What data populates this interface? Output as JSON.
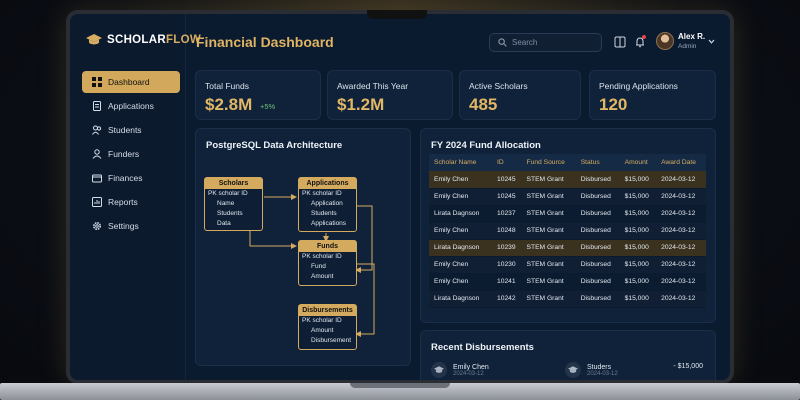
{
  "brand": {
    "part1": "SCHOLAR",
    "part2": "FLOW"
  },
  "header": {
    "title": "Financial Dashboard",
    "search_placeholder": "Search",
    "user_name": "Alex R.",
    "user_role": "Admin"
  },
  "sidebar": {
    "items": [
      {
        "label": "Dashboard",
        "icon": "grid-icon",
        "active": true
      },
      {
        "label": "Applications",
        "icon": "document-icon"
      },
      {
        "label": "Students",
        "icon": "users-icon"
      },
      {
        "label": "Funders",
        "icon": "user-icon"
      },
      {
        "label": "Finances",
        "icon": "wallet-icon"
      },
      {
        "label": "Reports",
        "icon": "report-icon"
      },
      {
        "label": "Settings",
        "icon": "gear-icon"
      }
    ]
  },
  "stats": [
    {
      "label": "Total Funds",
      "value": "$2.8M",
      "delta": "+5%"
    },
    {
      "label": "Awarded This Year",
      "value": "$1.2M"
    },
    {
      "label": "Active Scholars",
      "value": "485"
    },
    {
      "label": "Pending Applications",
      "value": "120"
    }
  ],
  "architecture": {
    "title": "PostgreSQL Data Architecture",
    "entities": {
      "scholars": {
        "name": "Scholars",
        "pk": "PK scholar ID",
        "fields": [
          "Name",
          "Students",
          "Data"
        ]
      },
      "applications": {
        "name": "Applications",
        "pk": "PK scholar ID",
        "fields": [
          "Application",
          "Students",
          "Applications"
        ]
      },
      "funds": {
        "name": "Funds",
        "pk": "PK scholar ID",
        "fields": [
          "Fund",
          "Amount"
        ]
      },
      "disbursements": {
        "name": "Disbursements",
        "pk": "PK scholar ID",
        "fields": [
          "Amount",
          "Disbursement"
        ]
      }
    }
  },
  "allocation": {
    "title": "FY 2024 Fund Allocation",
    "columns": [
      "Scholar Name",
      "ID",
      "Fund Source",
      "Status",
      "Amount",
      "Award Date"
    ],
    "rows": [
      [
        "Emily Chen",
        "10245",
        "STEM Grant",
        "Disbursed",
        "$15,000",
        "2024-03-12"
      ],
      [
        "Emily Chen",
        "10245",
        "STEM Grant",
        "Disbursed",
        "$15,000",
        "2024-03-12"
      ],
      [
        "Lirata Dagnson",
        "10237",
        "STEM Grant",
        "Disbursed",
        "$15,000",
        "2024-03-12"
      ],
      [
        "Emily Chen",
        "10248",
        "STEM Grant",
        "Disbursed",
        "$15,000",
        "2024-03-12"
      ],
      [
        "Lirata Dagnson",
        "10239",
        "STEM Grant",
        "Disbursed",
        "$15,000",
        "2024-03-12"
      ],
      [
        "Emily Chen",
        "10230",
        "STEM Grant",
        "Disbursed",
        "$15,000",
        "2024-03-12"
      ],
      [
        "Emily Chen",
        "10241",
        "STEM Grant",
        "Disbursed",
        "$15,000",
        "2024-03-12"
      ],
      [
        "Lirata Dagnson",
        "10242",
        "STEM Grant",
        "Disbursed",
        "$15,000",
        "2024-03-12"
      ]
    ]
  },
  "recent": {
    "title": "Recent Disbursements",
    "items": [
      {
        "name": "Emily Chen",
        "sub": "2024-03-12"
      },
      {
        "name": "Studers",
        "sub": "2024-03-12",
        "amount": "- $15,000"
      }
    ]
  },
  "colors": {
    "accent": "#d6ad62",
    "background": "#0a1a2f",
    "card": "#0f2239"
  }
}
